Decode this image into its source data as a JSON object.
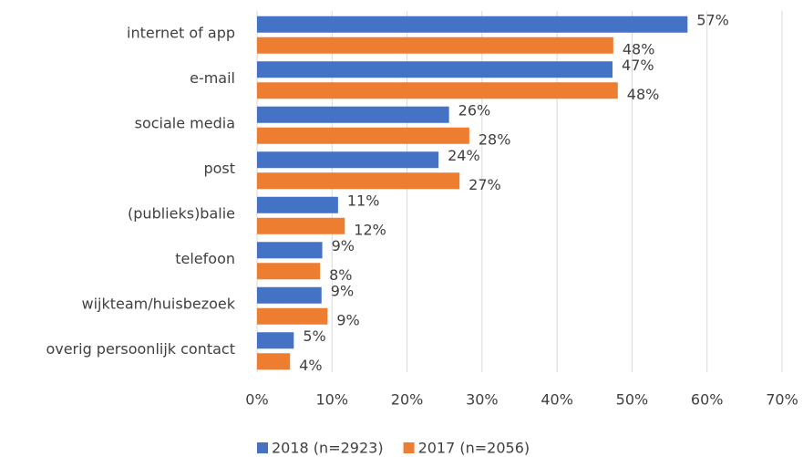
{
  "chart_data": {
    "type": "bar",
    "orientation": "horizontal",
    "categories": [
      "internet of app",
      "e-mail",
      "sociale media",
      "post",
      "(publieks)balie",
      "telefoon",
      "wijkteam/huisbezoek",
      "overig persoonlijk contact"
    ],
    "series": [
      {
        "name": "2018 (n=2923)",
        "color": "#4472c4",
        "values": [
          57.4,
          47.4,
          25.6,
          24.2,
          10.8,
          8.7,
          8.6,
          4.9
        ],
        "value_labels": [
          "57%",
          "47%",
          "26%",
          "24%",
          "11%",
          "9%",
          "9%",
          "5%"
        ]
      },
      {
        "name": "2017 (n=2056)",
        "color": "#ed7d31",
        "values": [
          47.5,
          48.1,
          28.3,
          27.0,
          11.7,
          8.4,
          9.4,
          4.4
        ],
        "value_labels": [
          "48%",
          "48%",
          "28%",
          "27%",
          "12%",
          "8%",
          "9%",
          "4%"
        ]
      }
    ],
    "xlim": [
      0,
      70
    ],
    "xticks": [
      {
        "value": 0,
        "label": "0%"
      },
      {
        "value": 10,
        "label": "10%"
      },
      {
        "value": 20,
        "label": "20%"
      },
      {
        "value": 30,
        "label": "30%"
      },
      {
        "value": 40,
        "label": "40%"
      },
      {
        "value": 50,
        "label": "50%"
      },
      {
        "value": 60,
        "label": "60%"
      },
      {
        "value": 70,
        "label": "70%"
      }
    ],
    "grid": true,
    "legend": "bottom"
  }
}
